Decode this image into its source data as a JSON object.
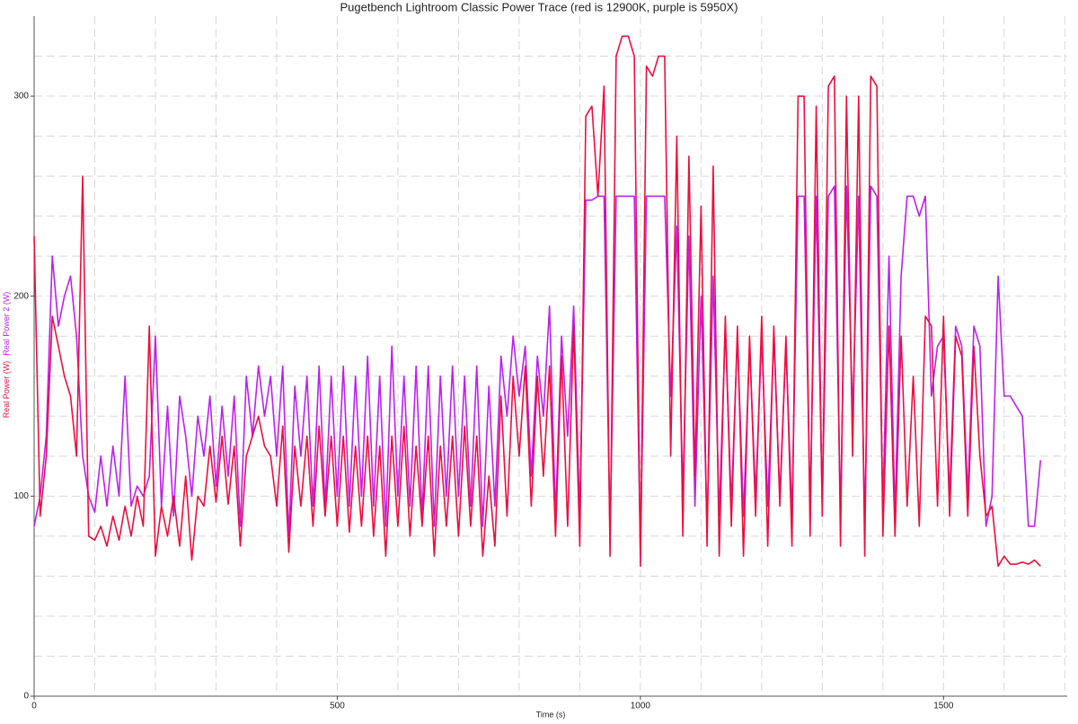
{
  "chart_data": {
    "type": "line",
    "title": "Pugetbench Lightroom Classic Power Trace (red is 12900K, purple is 5950X)",
    "x_label": "Time (s)",
    "xlim": [
      0,
      1704
    ],
    "ylim": [
      0,
      340
    ],
    "xticks": [
      0,
      500,
      1000,
      1500
    ],
    "yticks": [
      0,
      100,
      200,
      300
    ],
    "x_grid": [
      100,
      200,
      300,
      400,
      500,
      600,
      700,
      800,
      900,
      1000,
      1100,
      1200,
      1300,
      1400,
      1500,
      1600,
      1700
    ],
    "y_grid": [
      20,
      40,
      60,
      80,
      100,
      120,
      140,
      160,
      180,
      200,
      220,
      240,
      260,
      280,
      300,
      320
    ],
    "grid": true,
    "x": [
      0,
      10,
      20,
      30,
      40,
      50,
      60,
      70,
      80,
      90,
      100,
      110,
      120,
      130,
      140,
      150,
      160,
      170,
      180,
      190,
      200,
      210,
      220,
      230,
      240,
      250,
      260,
      270,
      280,
      290,
      300,
      310,
      320,
      330,
      340,
      350,
      360,
      370,
      380,
      390,
      400,
      410,
      420,
      430,
      440,
      450,
      460,
      470,
      480,
      490,
      500,
      510,
      520,
      530,
      540,
      550,
      560,
      570,
      580,
      590,
      600,
      610,
      620,
      630,
      640,
      650,
      660,
      670,
      680,
      690,
      700,
      710,
      720,
      730,
      740,
      750,
      760,
      770,
      780,
      790,
      800,
      810,
      820,
      830,
      840,
      850,
      860,
      870,
      880,
      890,
      900,
      910,
      920,
      930,
      940,
      950,
      960,
      970,
      980,
      990,
      1000,
      1010,
      1020,
      1030,
      1040,
      1050,
      1060,
      1070,
      1080,
      1090,
      1100,
      1110,
      1120,
      1130,
      1140,
      1150,
      1160,
      1170,
      1180,
      1190,
      1200,
      1210,
      1220,
      1230,
      1240,
      1250,
      1260,
      1270,
      1280,
      1290,
      1300,
      1310,
      1320,
      1330,
      1340,
      1350,
      1360,
      1370,
      1380,
      1390,
      1400,
      1410,
      1420,
      1430,
      1440,
      1450,
      1460,
      1470,
      1480,
      1490,
      1500,
      1510,
      1520,
      1530,
      1540,
      1550,
      1560,
      1570,
      1580,
      1590,
      1600,
      1610,
      1620,
      1630,
      1640,
      1650,
      1660
    ],
    "series": [
      {
        "name": "Real Power 2 (W)",
        "color": "#c01ef0",
        "values": [
          85,
          100,
          130,
          220,
          185,
          200,
          210,
          180,
          120,
          100,
          92,
          120,
          95,
          125,
          100,
          160,
          95,
          105,
          100,
          110,
          180,
          95,
          145,
          90,
          150,
          130,
          100,
          140,
          120,
          150,
          105,
          145,
          110,
          150,
          85,
          160,
          130,
          165,
          140,
          160,
          120,
          165,
          80,
          155,
          120,
          160,
          95,
          165,
          95,
          160,
          100,
          165,
          95,
          160,
          100,
          170,
          95,
          160,
          85,
          175,
          100,
          160,
          95,
          165,
          90,
          165,
          85,
          160,
          100,
          165,
          100,
          160,
          95,
          165,
          85,
          155,
          95,
          170,
          140,
          180,
          150,
          175,
          110,
          170,
          140,
          195,
          90,
          180,
          130,
          195,
          90,
          248,
          248,
          250,
          250,
          80,
          250,
          250,
          250,
          250,
          70,
          250,
          250,
          250,
          250,
          150,
          235,
          100,
          230,
          95,
          200,
          85,
          210,
          90,
          185,
          95,
          180,
          90,
          175,
          100,
          180,
          95,
          180,
          100,
          175,
          90,
          250,
          250,
          95,
          250,
          95,
          250,
          255,
          90,
          255,
          140,
          250,
          85,
          255,
          250,
          95,
          220,
          90,
          210,
          250,
          250,
          240,
          250,
          150,
          175,
          180,
          100,
          185,
          175,
          100,
          185,
          175,
          85,
          100,
          210,
          150,
          150,
          145,
          140,
          85,
          85,
          118
        ]
      },
      {
        "name": "Real Power (W)",
        "color": "#ee0e3c",
        "values": [
          230,
          90,
          120,
          190,
          175,
          160,
          150,
          120,
          260,
          80,
          78,
          85,
          75,
          90,
          78,
          95,
          80,
          100,
          85,
          185,
          70,
          95,
          80,
          100,
          75,
          110,
          68,
          100,
          95,
          125,
          97,
          130,
          96,
          125,
          75,
          120,
          130,
          140,
          125,
          120,
          95,
          135,
          72,
          125,
          95,
          130,
          85,
          135,
          90,
          130,
          85,
          130,
          82,
          125,
          85,
          130,
          80,
          125,
          70,
          130,
          85,
          135,
          80,
          125,
          85,
          130,
          70,
          125,
          85,
          130,
          80,
          135,
          85,
          130,
          70,
          110,
          75,
          150,
          90,
          160,
          120,
          165,
          95,
          160,
          110,
          165,
          80,
          170,
          85,
          185,
          75,
          290,
          295,
          250,
          305,
          70,
          320,
          330,
          330,
          320,
          65,
          315,
          310,
          320,
          320,
          120,
          280,
          80,
          270,
          110,
          245,
          75,
          265,
          70,
          190,
          85,
          185,
          70,
          180,
          90,
          190,
          75,
          185,
          95,
          180,
          75,
          300,
          300,
          80,
          295,
          90,
          305,
          310,
          75,
          300,
          120,
          300,
          70,
          310,
          305,
          80,
          185,
          80,
          180,
          95,
          160,
          85,
          190,
          185,
          95,
          190,
          90,
          180,
          170,
          90,
          175,
          120,
          90,
          95,
          65,
          70,
          66,
          66,
          67,
          66,
          68,
          65
        ]
      }
    ]
  }
}
